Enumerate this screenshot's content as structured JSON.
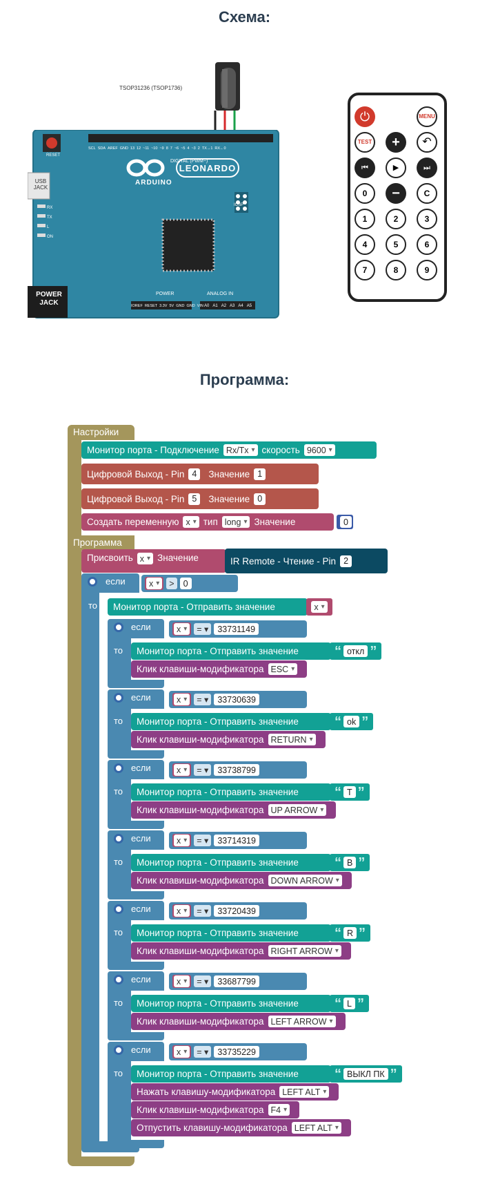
{
  "schematic": {
    "title": "Схема:",
    "sensor_label": "TSOP31236 (TSOP1736)",
    "board": {
      "name": "LEONARDO",
      "brand": "ARDUINO",
      "reset": "RESET",
      "usb": "USB JACK",
      "power_jack": "POWER JACK",
      "digital_label": "DIGITAL (PWM~)",
      "power_label": "POWER",
      "analog_label": "ANALOG IN",
      "icsp": "ICSP",
      "leds": [
        "RX",
        "TX",
        "L",
        "ON"
      ],
      "top_pins": [
        "SCL",
        "SDA",
        "AREF",
        "GND",
        "13",
        "12",
        "~11",
        "~10",
        "~9",
        "8",
        "7",
        "~6",
        "~5",
        "4",
        "~3",
        "2",
        "TX→1",
        "RX←0"
      ],
      "power_pins": [
        "IOREF",
        "RESET",
        "3.3V",
        "5V",
        "GND",
        "GND",
        "VIN"
      ],
      "analog_pins": [
        "A0",
        "A1",
        "A2",
        "A3",
        "A4",
        "A5"
      ]
    },
    "remote": {
      "buttons": [
        "power",
        "MENU",
        "TEST",
        "+",
        "back",
        "prev",
        "play",
        "next",
        "0",
        "−",
        "C",
        "1",
        "2",
        "3",
        "4",
        "5",
        "6",
        "7",
        "8",
        "9"
      ]
    }
  },
  "program": {
    "title": "Программа:",
    "setup_label": "Настройки",
    "loop_label": "Программа",
    "setup": {
      "monitor": {
        "text": "Монитор порта - Подключение",
        "port": "Rx/Tx",
        "speed_label": "скорость",
        "speed": "9600"
      },
      "dout1": {
        "text": "Цифровой Выход - Pin",
        "pin": "4",
        "value_label": "Значение",
        "value": "1"
      },
      "dout2": {
        "text": "Цифровой Выход - Pin",
        "pin": "5",
        "value_label": "Значение",
        "value": "0"
      },
      "var": {
        "text": "Создать переменную",
        "name": "x",
        "type_label": "тип",
        "type": "long",
        "value_label": "Значение",
        "value": "0"
      }
    },
    "loop": {
      "assign": {
        "text": "Присвоить",
        "var": "x",
        "value_label": "Значение",
        "ir": "IR Remote - Чтение - Pin",
        "pin": "2"
      },
      "if_label": "если",
      "then_label": "то",
      "outer_cond": {
        "var": "x",
        "op": ">",
        "value": "0"
      },
      "serial_send": "Монитор порта - Отправить значение",
      "serial_var": "x",
      "click_mod": "Клик клавиши-модификатора",
      "branches": [
        {
          "code": "33731149",
          "text": "откл",
          "key": "ESC"
        },
        {
          "code": "33730639",
          "text": "ok",
          "key": "RETURN"
        },
        {
          "code": "33738799",
          "text": "T",
          "key": "UP ARROW"
        },
        {
          "code": "33714319",
          "text": "B",
          "key": "DOWN ARROW"
        },
        {
          "code": "33720439",
          "text": "R",
          "key": "RIGHT ARROW"
        },
        {
          "code": "33687799",
          "text": "L",
          "key": "LEFT ARROW"
        }
      ],
      "last_branch": {
        "code": "33735229",
        "text": "ВЫКЛ ПК",
        "press": "Нажать клавишу-модификатора",
        "press_key": "LEFT ALT",
        "click_key": "F4",
        "release": "Отпустить клавишу-модификатора",
        "release_key": "LEFT ALT"
      },
      "eq": "="
    }
  }
}
